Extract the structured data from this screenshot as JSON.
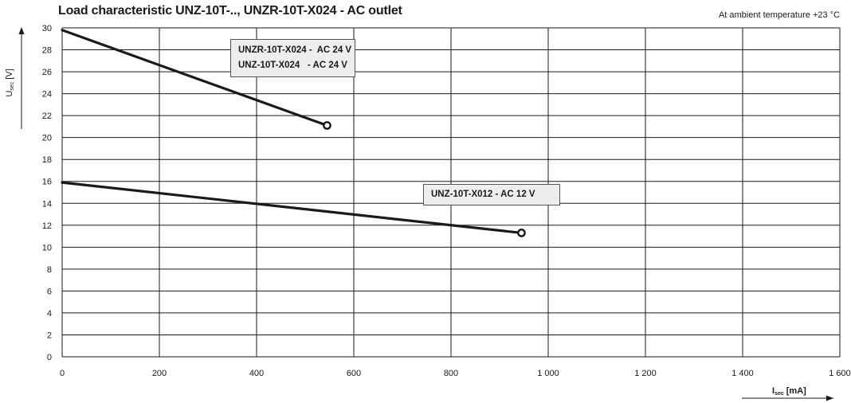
{
  "header": {
    "title": "Load characteristic UNZ-10T-.., UNZR-10T-X024 - AC outlet",
    "note": "At ambient temperature +23 °C"
  },
  "labels": {
    "ac24_line1": "UNZR-10T-X024 -  AC 24 V",
    "ac24_line2": "UNZ-10T-X024   - AC 24 V",
    "ac12": "UNZ-10T-X012 - AC 12 V"
  },
  "chart_data": {
    "type": "line",
    "title": "Load characteristic UNZ-10T-.., UNZR-10T-X024 - AC outlet",
    "note": "At ambient temperature +23 °C",
    "xlabel": "I",
    "xlabel_sub": "sec",
    "xlabel_unit": "[mA]",
    "ylabel": "U",
    "ylabel_sub": "sec",
    "ylabel_unit": "[V]",
    "xlim": [
      0,
      1600
    ],
    "ylim": [
      0,
      30
    ],
    "x_ticks": [
      0,
      200,
      400,
      600,
      800,
      1000,
      1200,
      1400,
      1600
    ],
    "x_tick_labels": [
      "0",
      "200",
      "400",
      "600",
      "800",
      "1 000",
      "1 200",
      "1 400",
      "1 600"
    ],
    "y_ticks": [
      0,
      2,
      4,
      6,
      8,
      10,
      12,
      14,
      16,
      18,
      20,
      22,
      24,
      26,
      28,
      30
    ],
    "grid": true,
    "series": [
      {
        "name": "UNZR-10T-X024 - AC 24 V / UNZ-10T-X024 - AC 24 V",
        "x": [
          0,
          545
        ],
        "y": [
          29.8,
          21.1
        ],
        "end_marker": true
      },
      {
        "name": "UNZ-10T-X012 - AC 12 V",
        "x": [
          0,
          945
        ],
        "y": [
          15.9,
          11.3
        ],
        "end_marker": true
      }
    ]
  }
}
